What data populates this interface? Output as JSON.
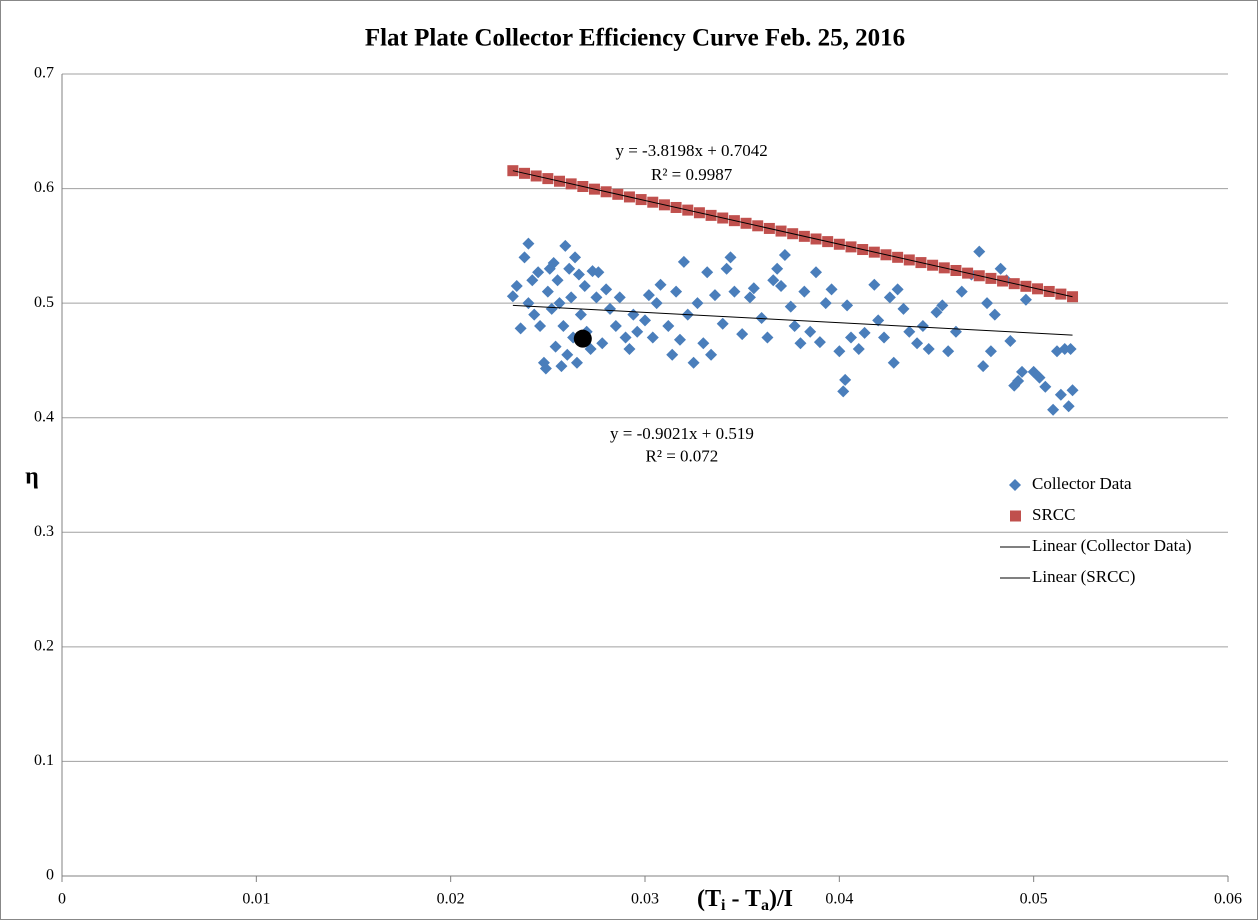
{
  "chart_data": {
    "type": "scatter",
    "title": "Flat Plate Collector Efficiency Curve Feb. 25, 2016",
    "xlabel_parts": [
      "(T",
      "i",
      " - T",
      "a",
      ")/I"
    ],
    "ylabel": "η",
    "xlim": [
      0,
      0.06
    ],
    "xticks": [
      0,
      0.01,
      0.02,
      0.03,
      0.04,
      0.05,
      0.06
    ],
    "ylim": [
      0,
      0.7
    ],
    "yticks": [
      0,
      0.1,
      0.2,
      0.3,
      0.4,
      0.5,
      0.6,
      0.7
    ],
    "grid": true,
    "legend": "right",
    "series": [
      {
        "name": "Collector Data",
        "kind": "scatter",
        "marker": "diamond",
        "color": "#4a7ebb",
        "x": [
          0.0232,
          0.0234,
          0.0236,
          0.0238,
          0.024,
          0.024,
          0.0242,
          0.0243,
          0.0245,
          0.0246,
          0.0248,
          0.0249,
          0.025,
          0.0251,
          0.0252,
          0.0253,
          0.0254,
          0.0255,
          0.0256,
          0.0257,
          0.0258,
          0.0259,
          0.026,
          0.0261,
          0.0262,
          0.0263,
          0.0264,
          0.0265,
          0.0266,
          0.0267,
          0.0269,
          0.027,
          0.0272,
          0.0273,
          0.0275,
          0.0276,
          0.0278,
          0.028,
          0.0282,
          0.0285,
          0.0287,
          0.029,
          0.0292,
          0.0294,
          0.0296,
          0.03,
          0.0302,
          0.0304,
          0.0306,
          0.0308,
          0.0312,
          0.0314,
          0.0316,
          0.0318,
          0.032,
          0.0322,
          0.0325,
          0.0327,
          0.033,
          0.0332,
          0.0334,
          0.0336,
          0.034,
          0.0342,
          0.0344,
          0.0346,
          0.035,
          0.0354,
          0.0356,
          0.036,
          0.0363,
          0.0366,
          0.0368,
          0.037,
          0.0372,
          0.0375,
          0.0377,
          0.038,
          0.0382,
          0.0385,
          0.0388,
          0.039,
          0.0393,
          0.0396,
          0.04,
          0.0402,
          0.0403,
          0.0404,
          0.0406,
          0.041,
          0.0413,
          0.0418,
          0.042,
          0.0423,
          0.0426,
          0.0428,
          0.043,
          0.0433,
          0.0436,
          0.044,
          0.0443,
          0.0446,
          0.045,
          0.0453,
          0.0456,
          0.046,
          0.0463,
          0.0468,
          0.0472,
          0.0474,
          0.0476,
          0.0478,
          0.048,
          0.0483,
          0.0486,
          0.0488,
          0.049,
          0.0492,
          0.0494,
          0.0496,
          0.05,
          0.0503,
          0.0506,
          0.051,
          0.0512,
          0.0514,
          0.0516,
          0.0518,
          0.0519,
          0.052
        ],
        "values": [
          0.506,
          0.515,
          0.478,
          0.54,
          0.552,
          0.5,
          0.52,
          0.49,
          0.527,
          0.48,
          0.448,
          0.443,
          0.51,
          0.53,
          0.495,
          0.535,
          0.462,
          0.52,
          0.5,
          0.445,
          0.48,
          0.55,
          0.455,
          0.53,
          0.505,
          0.47,
          0.54,
          0.448,
          0.525,
          0.49,
          0.515,
          0.475,
          0.46,
          0.528,
          0.505,
          0.527,
          0.465,
          0.512,
          0.495,
          0.48,
          0.505,
          0.47,
          0.46,
          0.49,
          0.475,
          0.485,
          0.507,
          0.47,
          0.5,
          0.516,
          0.48,
          0.455,
          0.51,
          0.468,
          0.536,
          0.49,
          0.448,
          0.5,
          0.465,
          0.527,
          0.455,
          0.507,
          0.482,
          0.53,
          0.54,
          0.51,
          0.473,
          0.505,
          0.513,
          0.487,
          0.47,
          0.52,
          0.53,
          0.515,
          0.542,
          0.497,
          0.48,
          0.465,
          0.51,
          0.475,
          0.527,
          0.466,
          0.5,
          0.512,
          0.458,
          0.423,
          0.433,
          0.498,
          0.47,
          0.46,
          0.474,
          0.516,
          0.485,
          0.47,
          0.505,
          0.448,
          0.512,
          0.495,
          0.475,
          0.465,
          0.48,
          0.46,
          0.492,
          0.498,
          0.458,
          0.475,
          0.51,
          0.525,
          0.545,
          0.445,
          0.5,
          0.458,
          0.49,
          0.53,
          0.52,
          0.467,
          0.428,
          0.432,
          0.44,
          0.503,
          0.44,
          0.435,
          0.427,
          0.407,
          0.458,
          0.42,
          0.46,
          0.41,
          0.46,
          0.424
        ]
      },
      {
        "name": "SRCC",
        "kind": "scatter",
        "marker": "square",
        "color": "#c0504d",
        "x": [
          0.0232,
          0.0238,
          0.0244,
          0.025,
          0.0256,
          0.0262,
          0.0268,
          0.0274,
          0.028,
          0.0286,
          0.0292,
          0.0298,
          0.0304,
          0.031,
          0.0316,
          0.0322,
          0.0328,
          0.0334,
          0.034,
          0.0346,
          0.0352,
          0.0358,
          0.0364,
          0.037,
          0.0376,
          0.0382,
          0.0388,
          0.0394,
          0.04,
          0.0406,
          0.0412,
          0.0418,
          0.0424,
          0.043,
          0.0436,
          0.0442,
          0.0448,
          0.0454,
          0.046,
          0.0466,
          0.0472,
          0.0478,
          0.0484,
          0.049,
          0.0496,
          0.0502,
          0.0508,
          0.0514,
          0.052
        ],
        "values": [
          0.6156,
          0.6133,
          0.611,
          0.6087,
          0.6064,
          0.6041,
          0.6018,
          0.5995,
          0.5972,
          0.595,
          0.5927,
          0.5904,
          0.5881,
          0.5858,
          0.5835,
          0.5812,
          0.5789,
          0.5766,
          0.5743,
          0.572,
          0.5697,
          0.5675,
          0.5652,
          0.5629,
          0.5606,
          0.5583,
          0.556,
          0.5537,
          0.5514,
          0.5491,
          0.5468,
          0.5445,
          0.5422,
          0.54,
          0.5377,
          0.5354,
          0.5331,
          0.5308,
          0.5285,
          0.5262,
          0.5239,
          0.5216,
          0.5193,
          0.517,
          0.5147,
          0.5125,
          0.5102,
          0.5079,
          0.5056
        ]
      },
      {
        "name": "Linear (Collector Data)",
        "kind": "line",
        "color": "#000000",
        "x": [
          0.0232,
          0.052
        ],
        "values": [
          0.4981,
          0.4721
        ]
      },
      {
        "name": "Linear (SRCC)",
        "kind": "line",
        "color": "#000000",
        "x": [
          0.0232,
          0.052
        ],
        "values": [
          0.6156,
          0.5056
        ]
      }
    ],
    "highlight": {
      "x": 0.0268,
      "y": 0.469,
      "color": "#000000"
    },
    "annotations": [
      {
        "text": "y = -3.8198x + 0.7042",
        "x": 0.0324,
        "y": 0.632
      },
      {
        "text": "R² = 0.9987",
        "x": 0.0324,
        "y": 0.611
      },
      {
        "text": "y = -0.9021x + 0.519",
        "x": 0.0319,
        "y": 0.385
      },
      {
        "text": "R² = 0.072",
        "x": 0.0319,
        "y": 0.365
      }
    ]
  }
}
